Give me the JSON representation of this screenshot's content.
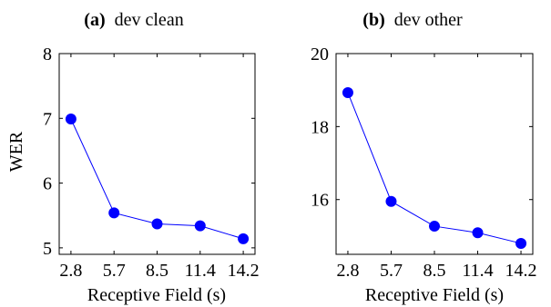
{
  "chart_data": [
    {
      "type": "line",
      "title_prefix": "(a)",
      "title": "dev clean",
      "xlabel": "Receptive Field (s)",
      "ylabel": "WER",
      "x_tick_labels": [
        "2.8",
        "5.7",
        "8.5",
        "11.4",
        "14.2"
      ],
      "x": [
        2.8,
        5.7,
        8.5,
        11.4,
        14.2
      ],
      "y_ticks": [
        5,
        6,
        7,
        8
      ],
      "ylim": [
        4.9,
        8.0
      ],
      "grid": false,
      "color": "#0000ff",
      "series": [
        {
          "values": [
            6.99,
            5.54,
            5.37,
            5.34,
            5.14
          ]
        }
      ]
    },
    {
      "type": "line",
      "title_prefix": "(b)",
      "title": "dev other",
      "xlabel": "Receptive Field (s)",
      "ylabel": "",
      "x_tick_labels": [
        "2.8",
        "5.7",
        "8.5",
        "11.4",
        "14.2"
      ],
      "x": [
        2.8,
        5.7,
        8.5,
        11.4,
        14.2
      ],
      "y_ticks": [
        16,
        18,
        20
      ],
      "ylim": [
        14.5,
        20.0
      ],
      "grid": false,
      "color": "#0000ff",
      "series": [
        {
          "values": [
            18.93,
            15.95,
            15.27,
            15.09,
            14.8
          ]
        }
      ]
    }
  ]
}
